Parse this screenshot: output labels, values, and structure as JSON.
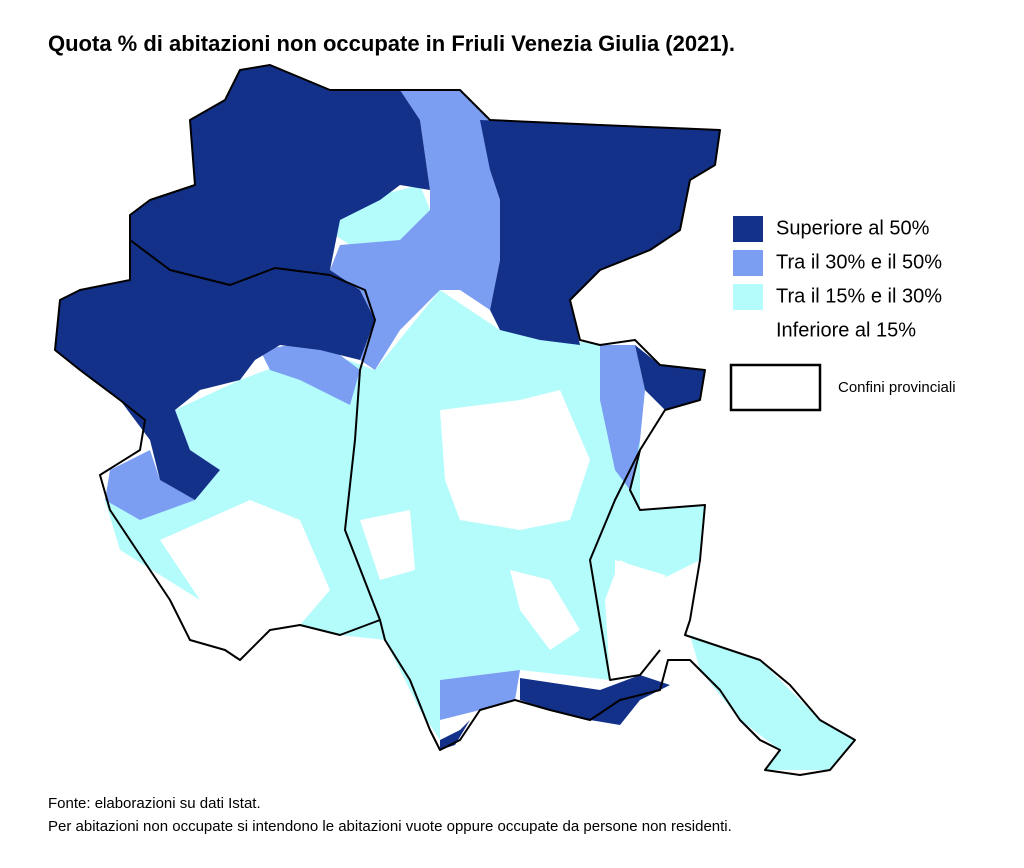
{
  "title": "Quota % di abitazioni non occupate in Friuli Venezia Giulia (2021).",
  "legend": {
    "items": [
      {
        "label": "Superiore al 50%",
        "color": "#14318a"
      },
      {
        "label": "Tra il 30% e il 50%",
        "color": "#7b9df2"
      },
      {
        "label": "Tra il 15% e il 30%",
        "color": "#b4fbfc"
      },
      {
        "label": "Inferiore al 15%"
      }
    ],
    "boundary_label": "Confini provinciali"
  },
  "notes": [
    "Fonte: elaborazioni su dati Istat.",
    "Per abitazioni non occupate si intendono le abitazioni vuote oppure occupate da persone non residenti."
  ]
}
